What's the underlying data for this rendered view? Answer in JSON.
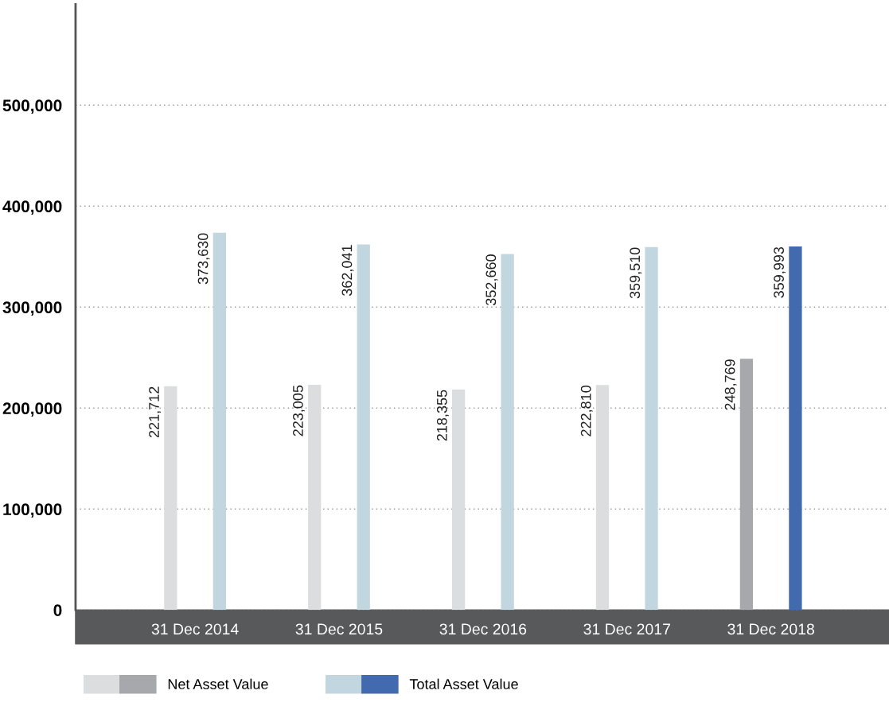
{
  "chart_data": {
    "type": "bar",
    "categories": [
      "31 Dec 2014",
      "31 Dec 2015",
      "31 Dec 2016",
      "31 Dec 2017",
      "31 Dec 2018"
    ],
    "series": [
      {
        "name": "Net Asset Value",
        "color": "#a7a8ab",
        "colors": [
          "#dcddde",
          "#dcddde",
          "#dcddde",
          "#dcddde",
          "#a7a8ab"
        ],
        "values": [
          221712,
          223005,
          218355,
          222810,
          248769
        ],
        "value_labels": [
          "221,712",
          "223,005",
          "218,355",
          "222,810",
          "248,769"
        ]
      },
      {
        "name": "Total Asset Value",
        "color": "#426aae",
        "colors": [
          "#c2d6df",
          "#c2d6df",
          "#c2d6df",
          "#c2d6df",
          "#426aae"
        ],
        "values": [
          373630,
          362041,
          352660,
          359510,
          359993
        ],
        "value_labels": [
          "373,630",
          "362,041",
          "352,660",
          "359,510",
          "359,993"
        ]
      }
    ],
    "ylim": [
      0,
      600000
    ],
    "yticks": [
      0,
      {
        "value": 100000,
        "label": "100,000"
      },
      {
        "value": 200000,
        "label": "200,000"
      },
      {
        "value": 300000,
        "label": "300,000"
      },
      {
        "value": 400000,
        "label": "400,000"
      },
      {
        "value": 500000,
        "label": "500,000"
      }
    ],
    "grid": "y",
    "legend": "bottom left"
  }
}
